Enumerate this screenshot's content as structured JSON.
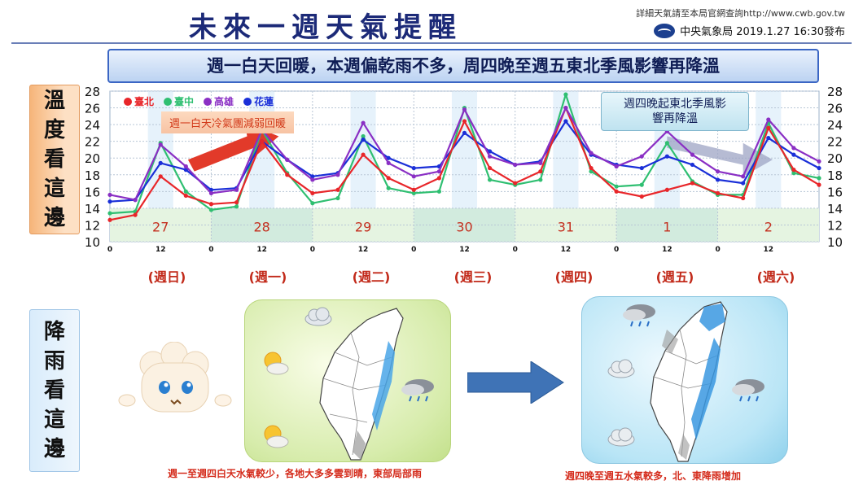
{
  "header": {
    "title": "未來一週天氣提醒",
    "source_line": "詳細天氣請至本局官網查詢http://www.cwb.gov.tw",
    "agency_line": "中央氣象局 2019.1.27 16:30發布"
  },
  "headline": "週一白天回暖，本週偏乾雨不多，周四晚至週五東北季風影響再降溫",
  "side_labels": {
    "temperature": [
      "溫",
      "度",
      "看",
      "這",
      "邊"
    ],
    "rain": [
      "降",
      "雨",
      "看",
      "這",
      "邊"
    ]
  },
  "callouts": {
    "warming": "週一白天冷氣團減弱回暖",
    "monsoon_line1": "週四晚起東北季風影",
    "monsoon_line2": "響再降溫"
  },
  "weekdays": [
    "(週日)",
    "(週一)",
    "(週二)",
    "(週三)",
    "(週四)",
    "(週五)",
    "(週六)"
  ],
  "captions": {
    "left": "週一至週四白天水氣較少，各地大多多雲到晴，東部局部雨",
    "right": "週四晚至週五水氣較多，北、東降雨增加"
  },
  "colors": {
    "taipei": "#e8262a",
    "taichung": "#2fbf71",
    "kaohsiung": "#8a2fc4",
    "hualien": "#1a2fd8"
  },
  "icons": [
    "cloud-icon",
    "sun-cloud-icon",
    "rain-cloud-icon",
    "arrow-right-icon",
    "mascot-icon",
    "taiwan-map-icon"
  ],
  "chart_data": {
    "type": "line",
    "ylim": [
      10,
      28
    ],
    "yticks": [
      10,
      12,
      14,
      16,
      18,
      20,
      22,
      24,
      26,
      28
    ],
    "x_tick_labels": [
      "0",
      "12",
      "0",
      "12",
      "0",
      "12",
      "0",
      "12",
      "0",
      "12",
      "0",
      "12",
      "0",
      "12"
    ],
    "date_labels": [
      "27",
      "28",
      "29",
      "30",
      "31",
      "1",
      "2"
    ],
    "x_hours": [
      0,
      6,
      12,
      18,
      24,
      30,
      36,
      42,
      48,
      54,
      60,
      66,
      72,
      78,
      84,
      90,
      96,
      102,
      108,
      114,
      120,
      126,
      132,
      138,
      144,
      150,
      156,
      162,
      168
    ],
    "series": [
      {
        "name": "臺北",
        "values": [
          12.6,
          13.2,
          17.8,
          15.5,
          14.5,
          14.7,
          22.0,
          18.0,
          15.8,
          16.2,
          20.4,
          17.6,
          16.2,
          17.6,
          24.4,
          18.8,
          17.0,
          18.4,
          26.0,
          18.8,
          16.0,
          15.4,
          16.2,
          17.0,
          15.8,
          15.2,
          23.6,
          18.6,
          16.8
        ]
      },
      {
        "name": "臺中",
        "values": [
          13.4,
          13.6,
          21.8,
          16.0,
          13.8,
          14.2,
          23.4,
          18.2,
          14.6,
          15.2,
          22.6,
          16.4,
          15.8,
          16.0,
          26.0,
          17.4,
          16.8,
          17.4,
          27.6,
          18.4,
          16.6,
          16.8,
          21.8,
          17.2,
          15.6,
          15.6,
          24.2,
          18.2,
          17.6
        ]
      },
      {
        "name": "高雄",
        "values": [
          15.6,
          15.0,
          21.6,
          19.0,
          15.8,
          16.2,
          23.4,
          19.8,
          17.4,
          18.0,
          24.2,
          19.4,
          17.8,
          18.4,
          25.8,
          20.2,
          19.2,
          19.4,
          26.0,
          20.6,
          19.0,
          20.2,
          23.2,
          20.4,
          18.4,
          17.8,
          24.6,
          21.2,
          19.6
        ]
      },
      {
        "name": "花蓮",
        "values": [
          14.8,
          15.0,
          19.4,
          18.6,
          16.2,
          16.4,
          22.0,
          19.8,
          17.8,
          18.2,
          22.2,
          20.0,
          18.8,
          19.0,
          23.0,
          20.8,
          19.2,
          19.6,
          24.4,
          20.4,
          19.2,
          18.8,
          20.2,
          19.2,
          17.4,
          17.0,
          22.4,
          20.4,
          18.8
        ]
      }
    ]
  }
}
